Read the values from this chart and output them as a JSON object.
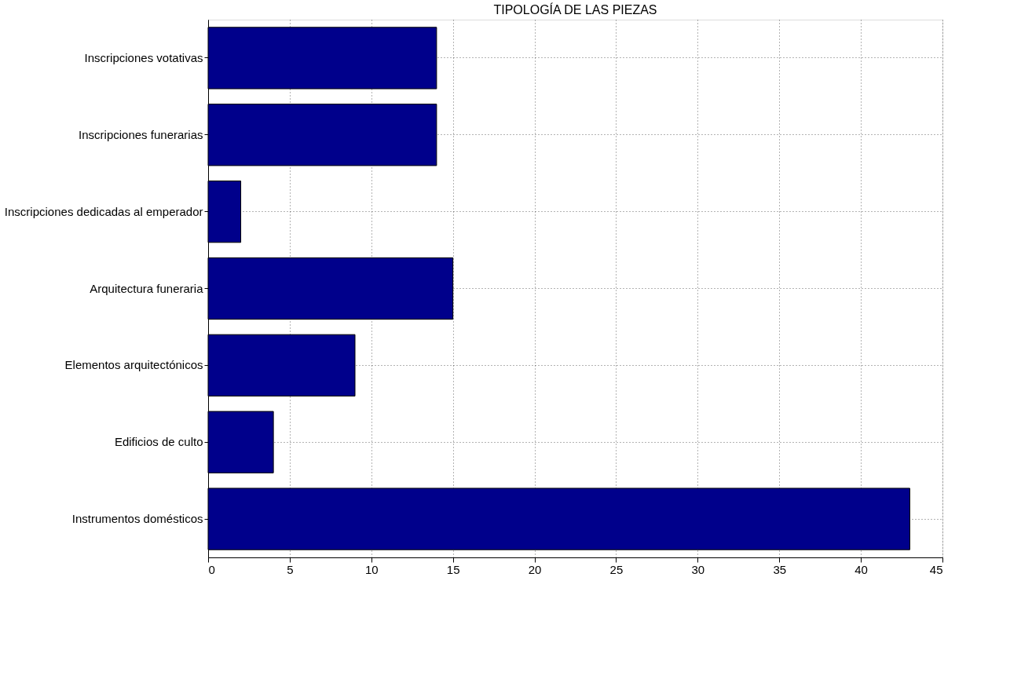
{
  "chart_data": {
    "type": "bar",
    "orientation": "horizontal",
    "title": "TIPOLOGÍA DE LAS PIEZAS",
    "categories": [
      "Inscripciones votativas",
      "Inscripciones funerarias",
      "Inscripciones dedicadas al emperador",
      "Arquitectura funeraria",
      "Elementos arquitectónicos",
      "Edificios de culto",
      "Instrumentos domésticos"
    ],
    "values": [
      14,
      14,
      2,
      15,
      9,
      4,
      43
    ],
    "color": "#00008b",
    "xlim": [
      0,
      45
    ],
    "xticks": [
      0,
      5,
      10,
      15,
      20,
      25,
      30,
      35,
      40,
      45
    ],
    "grid": true
  }
}
